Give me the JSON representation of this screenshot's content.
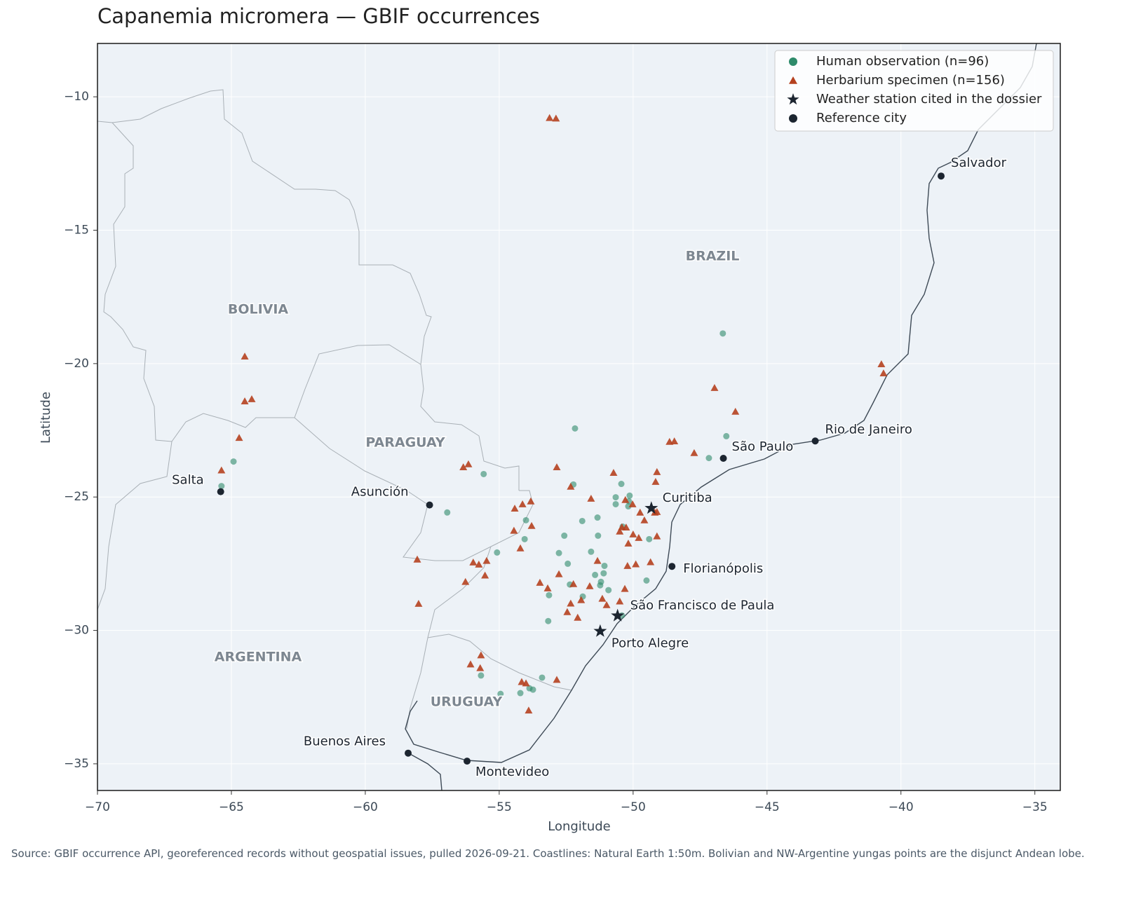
{
  "chart_data": {
    "type": "map",
    "title": "Capanemia micromera — GBIF occurrences",
    "xlabel": "Longitude",
    "ylabel": "Latitude",
    "xlim": [
      -70,
      -34.05
    ],
    "ylim": [
      -36,
      -8
    ],
    "xticks": [
      {
        "value": -70,
        "label": "−70"
      },
      {
        "value": -65,
        "label": "−65"
      },
      {
        "value": -60,
        "label": "−60"
      },
      {
        "value": -55,
        "label": "−55"
      },
      {
        "value": -50,
        "label": "−50"
      },
      {
        "value": -45,
        "label": "−45"
      },
      {
        "value": -40,
        "label": "−40"
      },
      {
        "value": -35,
        "label": "−35"
      }
    ],
    "yticks": [
      {
        "value": -10,
        "label": "−10"
      },
      {
        "value": -15,
        "label": "−15"
      },
      {
        "value": -20,
        "label": "−20"
      },
      {
        "value": -25,
        "label": "−25"
      },
      {
        "value": -30,
        "label": "−30"
      },
      {
        "value": -35,
        "label": "−35"
      }
    ],
    "grid": true,
    "legend": "upper right",
    "series": [
      {
        "name": "Human observation (n=96)",
        "color": "#2e8b6a",
        "marker": "circle",
        "x": [
          -46.65,
          -46.52,
          -47.17,
          -52.17,
          -55.58,
          -52.23,
          -50.44,
          -50.65,
          -50.13,
          -50.65,
          -51.33,
          -51.9,
          -50.16,
          -52.57,
          -51.31,
          -49.4,
          -52.77,
          -51.57,
          -51.07,
          -51.42,
          -51.1,
          -52.44,
          -51.2,
          -49.5,
          -52.36,
          -51.23,
          -50.92,
          -51.88,
          -53.14,
          -53.17,
          -50.42,
          -54.0,
          -54.05,
          -55.08,
          -56.94,
          -64.92,
          -65.37,
          -55.68,
          -53.4,
          -54.21,
          -53.87,
          -53.74,
          -54.95,
          -50.39,
          -50.18
        ],
        "y": [
          -18.87,
          -22.72,
          -23.54,
          -22.43,
          -24.14,
          -24.53,
          -24.51,
          -25.01,
          -24.95,
          -25.27,
          -25.77,
          -25.9,
          -25.16,
          -26.45,
          -26.45,
          -26.58,
          -27.1,
          -27.05,
          -27.58,
          -27.92,
          -27.86,
          -27.5,
          -28.18,
          -28.13,
          -28.28,
          -28.31,
          -28.49,
          -28.73,
          -28.68,
          -29.65,
          -29.44,
          -25.87,
          -26.58,
          -27.08,
          -25.58,
          -23.67,
          -24.59,
          -31.69,
          -31.77,
          -32.35,
          -32.17,
          -32.22,
          -32.38,
          -26.11,
          -25.35
        ]
      },
      {
        "name": "Herbarium specimen (n=156)",
        "color": "#b5411f",
        "marker": "triangle",
        "x": [
          -53.12,
          -52.88,
          -64.5,
          -64.5,
          -64.24,
          -64.71,
          -65.37,
          -40.73,
          -40.65,
          -46.96,
          -46.18,
          -48.64,
          -48.46,
          -47.72,
          -49.11,
          -49.16,
          -50.73,
          -52.85,
          -56.34,
          -56.15,
          -51.57,
          -52.33,
          -53.82,
          -54.13,
          -53.79,
          -54.42,
          -54.45,
          -54.21,
          -58.06,
          -58.01,
          -56.26,
          -55.97,
          -55.76,
          -55.47,
          -55.53,
          -53.48,
          -53.19,
          -52.77,
          -52.23,
          -52.33,
          -52.46,
          -52.07,
          -51.62,
          -51.33,
          -51.15,
          -50.5,
          -50.99,
          -50.31,
          -50.21,
          -50.18,
          -49.9,
          -49.35,
          -49.11,
          -49.19,
          -49.74,
          -49.58,
          -50.0,
          -50.5,
          -50.42,
          -49.79,
          -49.11,
          -50.29,
          -50.02,
          -50.26,
          -51.94,
          -52.85,
          -53.9,
          -54.16,
          -54.0,
          -55.68,
          -56.07,
          -55.71
        ],
        "y": [
          -10.79,
          -10.81,
          -19.73,
          -21.41,
          -21.33,
          -22.78,
          -24.0,
          -20.02,
          -20.36,
          -20.91,
          -21.8,
          -22.93,
          -22.91,
          -23.35,
          -24.06,
          -24.43,
          -24.09,
          -23.88,
          -23.88,
          -23.77,
          -25.06,
          -24.61,
          -25.16,
          -25.27,
          -26.08,
          -25.43,
          -26.26,
          -26.92,
          -27.34,
          -29.0,
          -28.18,
          -27.45,
          -27.53,
          -27.39,
          -27.94,
          -28.21,
          -28.42,
          -27.89,
          -28.26,
          -28.99,
          -29.31,
          -29.52,
          -28.34,
          -27.39,
          -28.81,
          -28.91,
          -29.05,
          -28.44,
          -27.58,
          -26.74,
          -27.52,
          -27.44,
          -26.47,
          -25.58,
          -25.58,
          -25.87,
          -26.4,
          -26.29,
          -26.13,
          -26.53,
          -25.56,
          -25.11,
          -25.27,
          -26.14,
          -28.86,
          -31.85,
          -33.0,
          -31.93,
          -31.98,
          -30.93,
          -31.27,
          -31.41
        ]
      },
      {
        "name": "Weather station cited in the dossier",
        "color": "#1c2530",
        "marker": "star",
        "labels": [
          "Curitiba",
          "São Francisco de Paula",
          "Porto Alegre"
        ],
        "x": [
          -49.32,
          -50.58,
          -51.23
        ],
        "y": [
          -25.42,
          -29.45,
          -30.03
        ]
      },
      {
        "name": "Reference city",
        "color": "#1c2530",
        "marker": "dot",
        "labels": [
          "Salvador",
          "Rio de Janeiro",
          "São Paulo",
          "Florianópolis",
          "Asunción",
          "Salta",
          "Buenos Aires",
          "Montevideo"
        ],
        "x": [
          -38.5,
          -43.2,
          -46.63,
          -48.55,
          -57.6,
          -65.4,
          -58.4,
          -56.2
        ],
        "y": [
          -12.97,
          -22.9,
          -23.55,
          -27.6,
          -25.3,
          -24.8,
          -34.6,
          -34.9
        ]
      }
    ],
    "regions": [
      "BRAZIL",
      "BOLIVIA",
      "PARAGUAY",
      "ARGENTINA",
      "URUGUAY"
    ],
    "source": "Source: GBIF occurrence API, georeferenced records without geospatial issues, pulled 2026-09-21. Coastlines: Natural Earth 1:50m. Bolivian and NW-Argentine yungas points are the disjunct Andean lobe."
  }
}
